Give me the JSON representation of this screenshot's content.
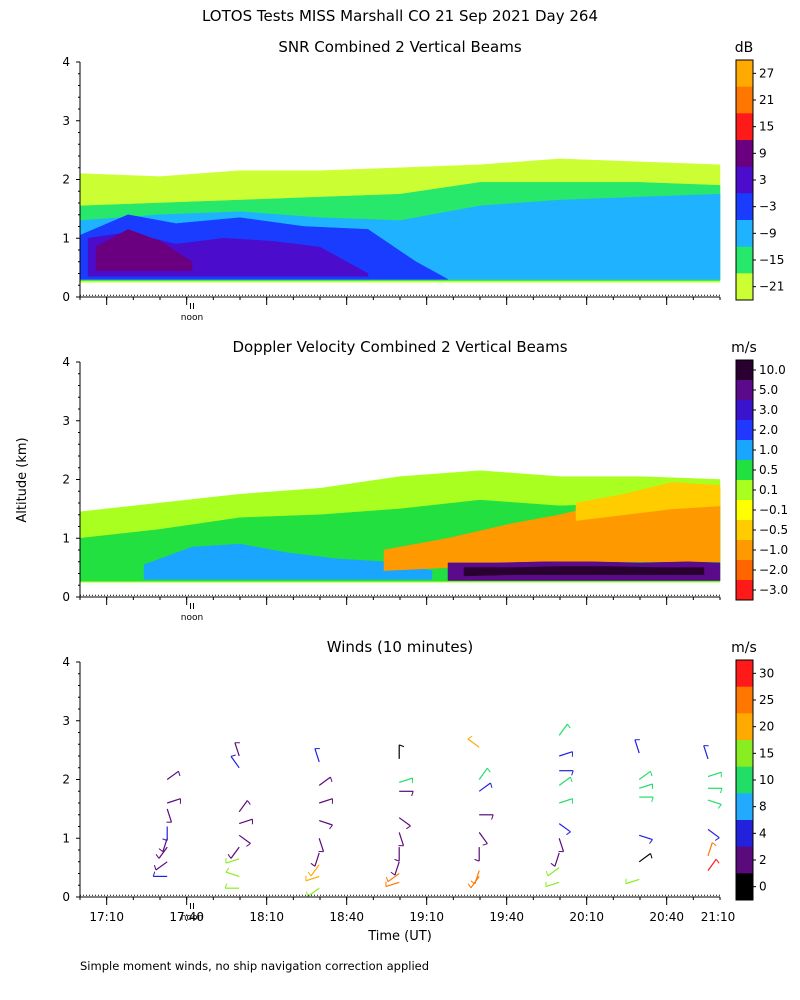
{
  "figure": {
    "title": "LOTOS Tests MISS Marshall CO  21 Sep 2021 Day 264",
    "ylabel": "Altitude (km)",
    "xlabel": "Time (UT)",
    "footnote": "Simple moment winds, no ship navigation correction applied",
    "noon_label": "noon"
  },
  "chart_data": [
    {
      "type": "heatmap",
      "title": "SNR Combined 2 Vertical Beams",
      "ylim": [
        0,
        4
      ],
      "yticks": [
        "0",
        "1",
        "2",
        "3",
        "4"
      ],
      "xlim": [
        17.0,
        21.0
      ],
      "colorbar": {
        "units": "dB",
        "labels": [
          "27",
          "21",
          "15",
          "9",
          "3",
          "−3",
          "−9",
          "−15",
          "−21"
        ],
        "colors": [
          "#ffaa00",
          "#ff7700",
          "#ff1a1a",
          "#6a0080",
          "#4b0ccc",
          "#1a3cff",
          "#1eb2ff",
          "#27e86a",
          "#ccff33"
        ]
      },
      "bands": [
        {
          "level": "-21 dB",
          "color": "#ccff33",
          "t": [
            17.0,
            17.5,
            18.0,
            18.5,
            19.0,
            19.5,
            20.0,
            20.5,
            21.0
          ],
          "bottom": [
            0.25,
            0.25,
            0.25,
            0.25,
            0.25,
            0.25,
            0.25,
            0.25,
            0.25
          ],
          "top": [
            2.1,
            2.05,
            2.15,
            2.15,
            2.2,
            2.25,
            2.35,
            2.3,
            2.25
          ]
        },
        {
          "level": "-15 dB",
          "color": "#27e86a",
          "t": [
            17.0,
            17.5,
            18.0,
            18.5,
            19.0,
            19.5,
            20.0,
            20.5,
            21.0
          ],
          "bottom": [
            0.28,
            0.28,
            0.28,
            0.28,
            0.28,
            0.28,
            0.28,
            0.28,
            0.28
          ],
          "top": [
            1.55,
            1.6,
            1.65,
            1.7,
            1.75,
            1.95,
            1.95,
            1.95,
            1.9
          ]
        },
        {
          "level": "-9 dB",
          "color": "#1eb2ff",
          "t": [
            17.0,
            17.5,
            18.0,
            18.5,
            19.0,
            19.5,
            20.0,
            20.5,
            21.0
          ],
          "bottom": [
            0.3,
            0.3,
            0.3,
            0.3,
            0.3,
            0.3,
            0.3,
            0.3,
            0.3
          ],
          "top": [
            1.3,
            1.4,
            1.45,
            1.35,
            1.3,
            1.55,
            1.65,
            1.7,
            1.75
          ]
        },
        {
          "level": "-3 dB",
          "color": "#1a3cff",
          "t": [
            17.0,
            17.3,
            17.6,
            18.0,
            18.4,
            18.8,
            19.1,
            19.3
          ],
          "bottom": [
            0.3,
            0.3,
            0.3,
            0.3,
            0.3,
            0.3,
            0.3,
            0.3
          ],
          "top": [
            1.05,
            1.4,
            1.25,
            1.35,
            1.2,
            1.15,
            0.6,
            0.3
          ]
        },
        {
          "level": "3 dB",
          "color": "#4b0ccc",
          "t": [
            17.05,
            17.3,
            17.6,
            17.9,
            18.2,
            18.5,
            18.8
          ],
          "bottom": [
            0.35,
            0.35,
            0.35,
            0.35,
            0.35,
            0.35,
            0.35
          ],
          "top": [
            1.0,
            1.1,
            0.9,
            1.0,
            0.95,
            0.85,
            0.4
          ]
        },
        {
          "level": "9 dB",
          "color": "#6a0080",
          "t": [
            17.1,
            17.3,
            17.5,
            17.7
          ],
          "bottom": [
            0.45,
            0.45,
            0.45,
            0.45
          ],
          "top": [
            0.85,
            1.15,
            0.95,
            0.6
          ]
        }
      ]
    },
    {
      "type": "heatmap",
      "title": "Doppler Velocity Combined 2 Vertical Beams",
      "ylim": [
        0,
        4
      ],
      "yticks": [
        "0",
        "1",
        "2",
        "3",
        "4"
      ],
      "xlim": [
        17.0,
        21.0
      ],
      "colorbar": {
        "units": "m/s",
        "labels": [
          "10.0",
          "5.0",
          "3.0",
          "2.0",
          "1.0",
          "0.5",
          "0.1",
          "−0.1",
          "−0.5",
          "−1.0",
          "−2.0",
          "−3.0"
        ],
        "colors": [
          "#2a0030",
          "#5a0a8a",
          "#3a14cc",
          "#2038ff",
          "#1aa6ff",
          "#22e040",
          "#a8ff20",
          "#ffff00",
          "#ffcc00",
          "#ff9900",
          "#ff6600",
          "#ff1a1a"
        ]
      },
      "bands": [
        {
          "level": "0.1 m/s",
          "color": "#a8ff20",
          "t": [
            17.0,
            17.5,
            18.0,
            18.5,
            19.0,
            19.5,
            20.0,
            20.5,
            21.0
          ],
          "bottom": [
            0.25,
            0.25,
            0.25,
            0.25,
            0.25,
            0.25,
            0.25,
            0.25,
            0.25
          ],
          "top": [
            1.45,
            1.6,
            1.75,
            1.85,
            2.05,
            2.15,
            2.05,
            2.05,
            2.0
          ]
        },
        {
          "level": "0.5 m/s",
          "color": "#22e040",
          "t": [
            17.0,
            17.5,
            18.0,
            18.5,
            19.0,
            19.5,
            20.0,
            20.5,
            21.0
          ],
          "bottom": [
            0.27,
            0.27,
            0.27,
            0.27,
            0.27,
            0.27,
            0.27,
            0.27,
            0.27
          ],
          "top": [
            1.0,
            1.15,
            1.35,
            1.4,
            1.5,
            1.65,
            1.55,
            1.6,
            1.55
          ]
        },
        {
          "level": "1.0 m/s",
          "color": "#1aa6ff",
          "t": [
            17.4,
            17.7,
            18.0,
            18.3,
            18.6,
            18.9,
            19.2
          ],
          "bottom": [
            0.3,
            0.3,
            0.3,
            0.3,
            0.3,
            0.3,
            0.3
          ],
          "top": [
            0.55,
            0.85,
            0.9,
            0.75,
            0.65,
            0.6,
            0.45
          ]
        },
        {
          "level": "-1.0 m/s",
          "color": "#ff9900",
          "t": [
            18.9,
            19.3,
            19.7,
            20.0,
            20.3,
            20.6,
            21.0
          ],
          "bottom": [
            0.45,
            0.5,
            0.55,
            0.55,
            0.6,
            0.6,
            0.6
          ],
          "top": [
            0.8,
            1.0,
            1.25,
            1.4,
            1.6,
            1.75,
            1.85
          ]
        },
        {
          "level": "-0.5 m/s",
          "color": "#ffcc00",
          "t": [
            20.1,
            20.4,
            20.7,
            21.0
          ],
          "bottom": [
            1.3,
            1.4,
            1.5,
            1.55
          ],
          "top": [
            1.6,
            1.75,
            1.95,
            1.9
          ]
        },
        {
          "level": "5.0 m/s",
          "color": "#5a0a8a",
          "t": [
            19.3,
            19.6,
            19.9,
            20.2,
            20.5,
            20.8,
            21.0
          ],
          "bottom": [
            0.28,
            0.28,
            0.28,
            0.28,
            0.28,
            0.28,
            0.28
          ],
          "top": [
            0.58,
            0.58,
            0.6,
            0.6,
            0.58,
            0.6,
            0.58
          ]
        },
        {
          "level": "10.0 m/s",
          "color": "#2a0030",
          "t": [
            19.4,
            19.7,
            20.0,
            20.3,
            20.6,
            20.9
          ],
          "bottom": [
            0.36,
            0.38,
            0.38,
            0.38,
            0.38,
            0.38
          ],
          "top": [
            0.5,
            0.5,
            0.52,
            0.52,
            0.5,
            0.5
          ]
        }
      ]
    },
    {
      "type": "wind-barbs",
      "title": "Winds (10 minutes)",
      "ylim": [
        0,
        4
      ],
      "yticks": [
        "0",
        "1",
        "2",
        "3",
        "4"
      ],
      "xlim": [
        17.0,
        21.0
      ],
      "xticks": [
        "17:10",
        "17:40",
        "18:10",
        "18:40",
        "19:10",
        "19:40",
        "20:10",
        "20:40",
        "21:10"
      ],
      "xtick_hours": [
        17.1667,
        17.6667,
        18.1667,
        18.6667,
        19.1667,
        19.6667,
        20.1667,
        20.6667,
        21.1667
      ],
      "colorbar": {
        "units": "m/s",
        "labels": [
          "30",
          "25",
          "20",
          "15",
          "10",
          "8",
          "4",
          "2",
          "0"
        ],
        "colors": [
          "#ff1a1a",
          "#ff7700",
          "#ffaa00",
          "#88ee22",
          "#22dd66",
          "#22aaff",
          "#2222dd",
          "#5a0a7a",
          "#000000"
        ]
      },
      "profile_times": [
        17.62,
        18.07,
        18.57,
        19.07,
        19.57,
        20.07,
        20.57,
        21.0
      ],
      "barbs": [
        [
          [
            2.0,
            "#5a0a7a",
            0.15
          ],
          [
            1.6,
            "#5a0a7a",
            0.2
          ],
          [
            1.5,
            "#5a0a7a",
            0.45
          ],
          [
            1.2,
            "#2222dd",
            0.5
          ],
          [
            1.0,
            "#5a0a7a",
            0.55
          ],
          [
            0.85,
            "#5a0a7a",
            0.6
          ],
          [
            0.6,
            "#5a0a7a",
            0.65
          ],
          [
            0.35,
            "#2222dd",
            0.75
          ]
        ],
        [
          [
            2.4,
            "#5a0a7a",
            0.95
          ],
          [
            2.2,
            "#2222dd",
            0.9
          ],
          [
            1.45,
            "#5a0a7a",
            0.1
          ],
          [
            1.25,
            "#5a0a7a",
            0.2
          ],
          [
            1.05,
            "#5a0a7a",
            0.35
          ],
          [
            0.85,
            "#5a0a7a",
            0.6
          ],
          [
            0.65,
            "#88ee22",
            0.7
          ],
          [
            0.35,
            "#88ee22",
            0.8
          ],
          [
            0.15,
            "#88ee22",
            0.75
          ]
        ],
        [
          [
            2.3,
            "#2222dd",
            0.95
          ],
          [
            1.9,
            "#5a0a7a",
            0.15
          ],
          [
            1.6,
            "#5a0a7a",
            0.2
          ],
          [
            1.3,
            "#5a0a7a",
            0.3
          ],
          [
            1.0,
            "#5a0a7a",
            0.45
          ],
          [
            0.75,
            "#5a0a7a",
            0.55
          ],
          [
            0.55,
            "#ffaa00",
            0.6
          ],
          [
            0.35,
            "#ffaa00",
            0.7
          ],
          [
            0.15,
            "#88ee22",
            0.65
          ]
        ],
        [
          [
            2.35,
            "#000000",
            0.0
          ],
          [
            1.95,
            "#22dd66",
            0.2
          ],
          [
            1.8,
            "#5a0a7a",
            0.25
          ],
          [
            1.35,
            "#5a0a7a",
            0.35
          ],
          [
            1.1,
            "#5a0a7a",
            0.45
          ],
          [
            0.85,
            "#5a0a7a",
            0.5
          ],
          [
            0.6,
            "#5a0a7a",
            0.55
          ],
          [
            0.4,
            "#ff7700",
            0.65
          ],
          [
            0.25,
            "#ff7700",
            0.7
          ]
        ],
        [
          [
            2.55,
            "#ffaa00",
            0.85
          ],
          [
            2.0,
            "#22dd66",
            0.1
          ],
          [
            1.8,
            "#2222dd",
            0.15
          ],
          [
            1.4,
            "#5a0a7a",
            0.25
          ],
          [
            1.1,
            "#5a0a7a",
            0.4
          ],
          [
            0.85,
            "#5a0a7a",
            0.5
          ],
          [
            0.45,
            "#ff7700",
            0.55
          ],
          [
            0.35,
            "#ff7700",
            0.6
          ]
        ],
        [
          [
            2.75,
            "#22dd66",
            0.1
          ],
          [
            2.4,
            "#2222dd",
            0.2
          ],
          [
            2.15,
            "#2222dd",
            0.25
          ],
          [
            1.9,
            "#22dd66",
            0.15
          ],
          [
            1.6,
            "#22dd66",
            0.2
          ],
          [
            1.25,
            "#2222dd",
            0.35
          ],
          [
            1.0,
            "#5a0a7a",
            0.45
          ],
          [
            0.75,
            "#5a0a7a",
            0.55
          ],
          [
            0.5,
            "#88ee22",
            0.65
          ],
          [
            0.25,
            "#88ee22",
            0.7
          ]
        ],
        [
          [
            2.45,
            "#2222dd",
            0.95
          ],
          [
            2.0,
            "#22dd66",
            0.15
          ],
          [
            1.85,
            "#22dd66",
            0.2
          ],
          [
            1.7,
            "#22dd66",
            0.25
          ],
          [
            1.05,
            "#2222dd",
            0.3
          ],
          [
            0.6,
            "#000000",
            0.15
          ],
          [
            0.3,
            "#88ee22",
            0.7
          ]
        ],
        [
          [
            2.35,
            "#2222dd",
            0.95
          ],
          [
            2.05,
            "#22dd66",
            0.2
          ],
          [
            1.85,
            "#22dd66",
            0.25
          ],
          [
            1.65,
            "#22dd66",
            0.3
          ],
          [
            1.15,
            "#2222dd",
            0.35
          ],
          [
            0.7,
            "#ff7700",
            0.05
          ],
          [
            0.45,
            "#ff1a1a",
            0.1
          ]
        ]
      ]
    }
  ]
}
